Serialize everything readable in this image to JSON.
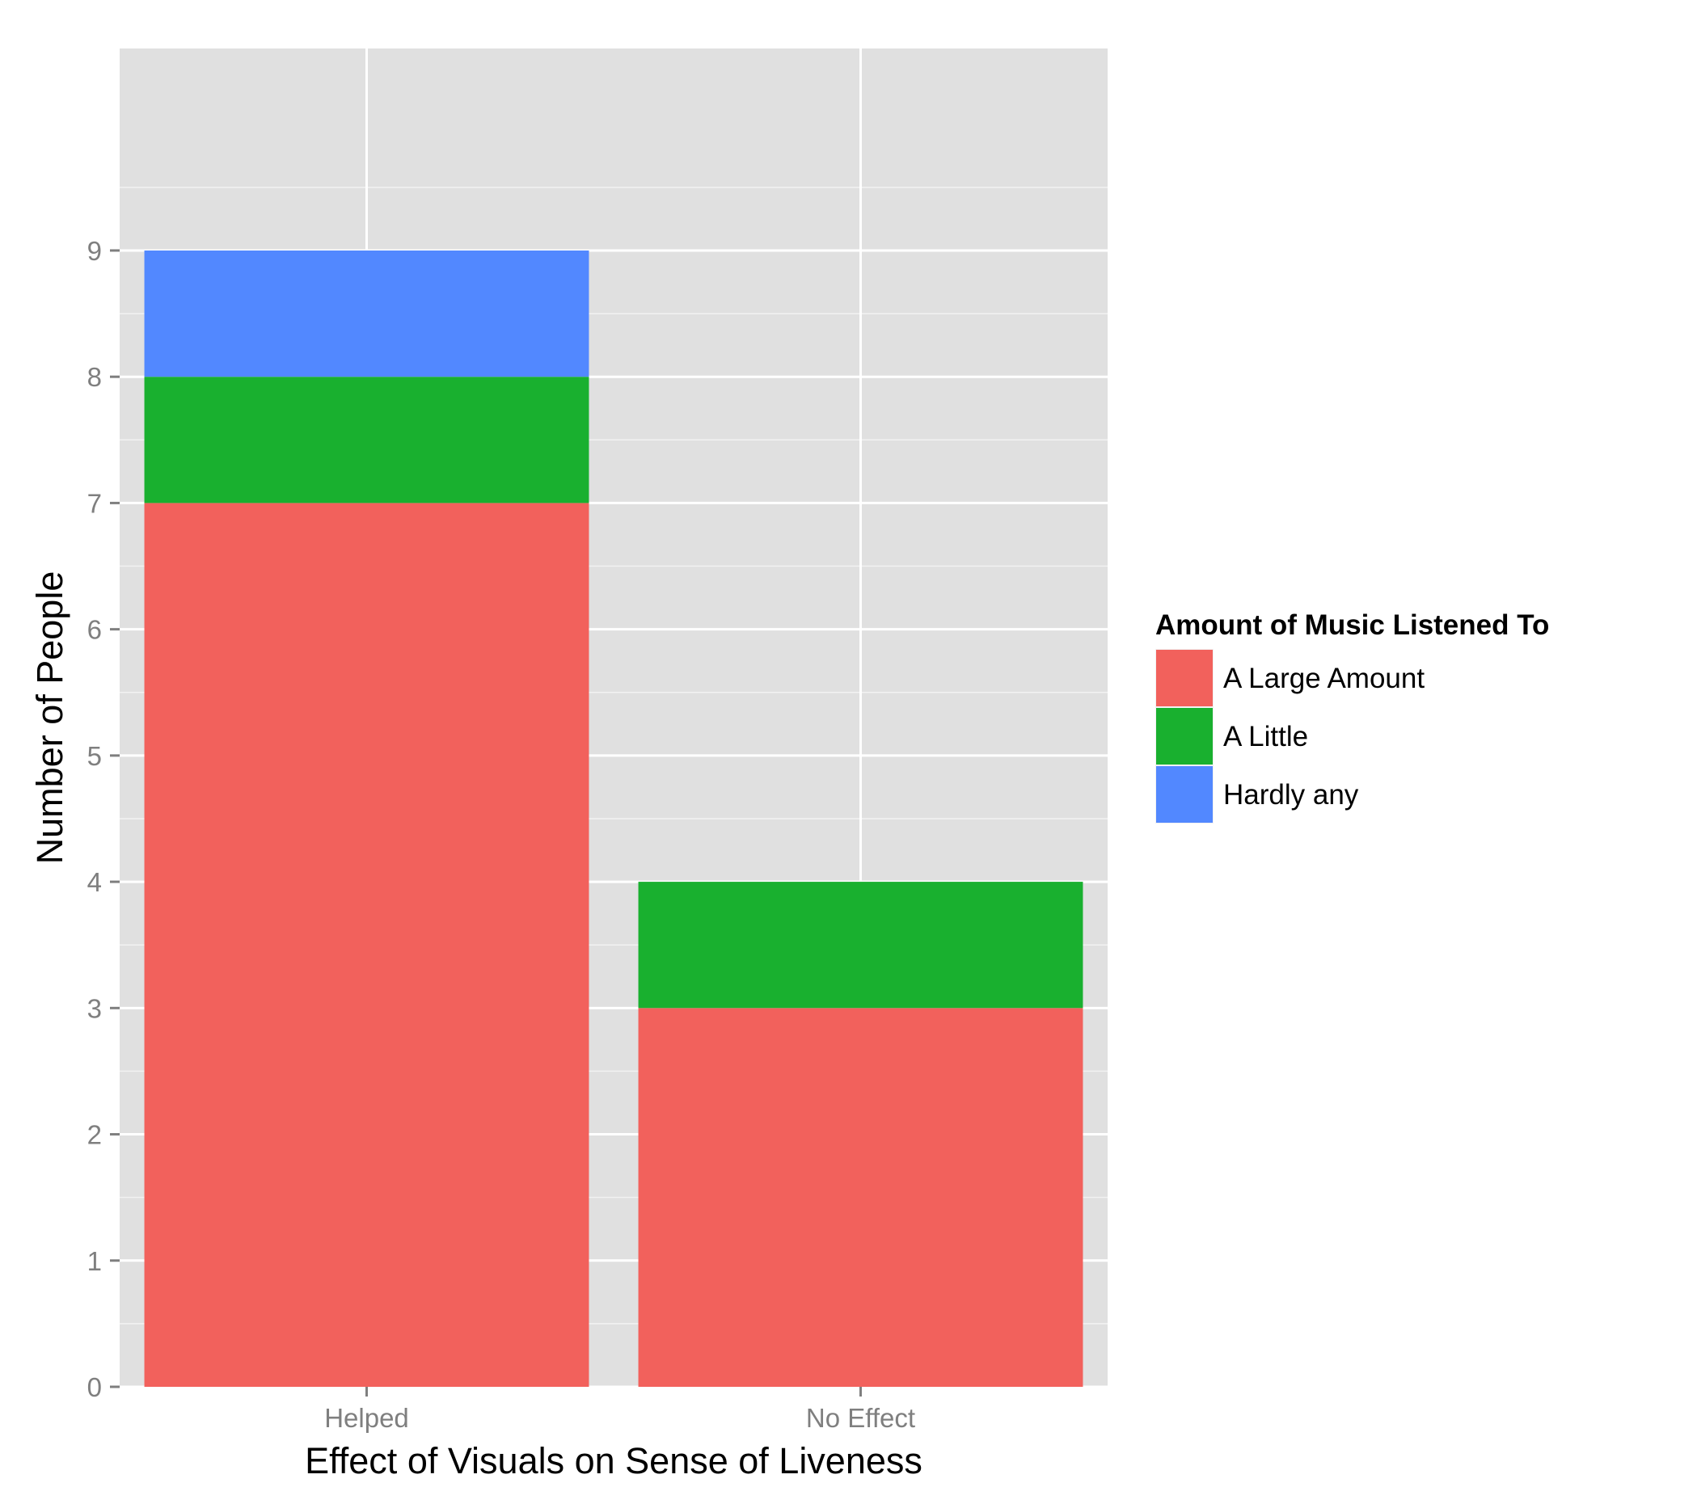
{
  "chart_data": {
    "type": "bar",
    "stacked": true,
    "categories": [
      "Helped",
      "No Effect"
    ],
    "series": [
      {
        "name": "A Large Amount",
        "color": "#F2615C",
        "values": [
          7,
          3
        ]
      },
      {
        "name": "A Little",
        "color": "#19B02F",
        "values": [
          1,
          1
        ]
      },
      {
        "name": "Hardly any",
        "color": "#5288FF",
        "values": [
          1,
          0
        ]
      }
    ],
    "xlabel": "Effect of Visuals on Sense of Liveness",
    "ylabel": "Number of People",
    "ylim": [
      0,
      10.6
    ],
    "yticks": [
      "0",
      "1",
      "2",
      "3",
      "4",
      "5",
      "6",
      "7",
      "8",
      "9"
    ],
    "legend": {
      "title": "Amount of Music Listened To",
      "position": "right"
    },
    "grid": true,
    "panel_color": "#E0E0E0"
  }
}
